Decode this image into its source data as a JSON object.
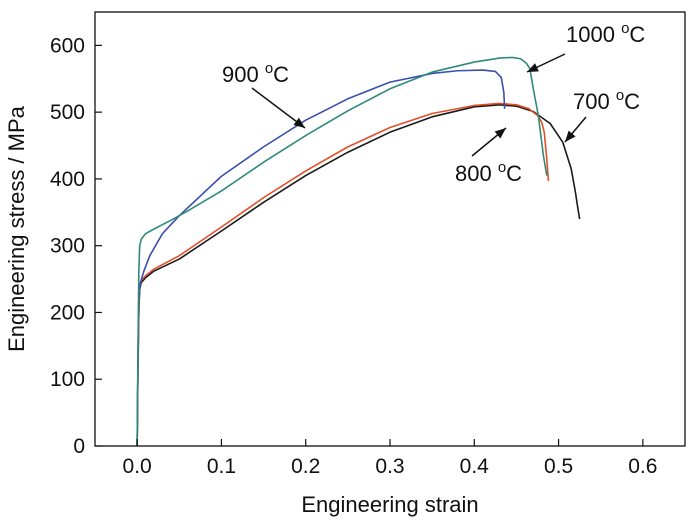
{
  "chart_data": {
    "type": "line",
    "title": "",
    "xlabel": "Engineering strain",
    "ylabel": "Engineering stress / MPa",
    "xlim": [
      -0.05,
      0.65
    ],
    "ylim": [
      0,
      650
    ],
    "xticks": [
      0.0,
      0.1,
      0.2,
      0.3,
      0.4,
      0.5,
      0.6
    ],
    "xtick_labels": [
      "0.0",
      "0.1",
      "0.2",
      "0.3",
      "0.4",
      "0.5",
      "0.6"
    ],
    "yticks": [
      0,
      100,
      200,
      300,
      400,
      500,
      600
    ],
    "ytick_labels": [
      "0",
      "100",
      "200",
      "300",
      "400",
      "500",
      "600"
    ],
    "grid": false,
    "legend": "none",
    "series": [
      {
        "color": "#1a1a1a",
        "x": [
          0.0,
          0.001,
          0.002,
          0.003,
          0.005,
          0.01,
          0.02,
          0.05,
          0.1,
          0.15,
          0.2,
          0.25,
          0.3,
          0.35,
          0.4,
          0.43,
          0.45,
          0.47,
          0.49,
          0.505,
          0.515,
          0.52,
          0.523,
          0.525
        ],
        "y": [
          0,
          120,
          200,
          235,
          245,
          252,
          262,
          280,
          322,
          365,
          405,
          440,
          470,
          493,
          508,
          511,
          509,
          501,
          483,
          455,
          415,
          380,
          355,
          340
        ]
      },
      {
        "color": "#e2502a",
        "x": [
          0.0,
          0.001,
          0.002,
          0.003,
          0.005,
          0.01,
          0.02,
          0.05,
          0.1,
          0.15,
          0.2,
          0.25,
          0.3,
          0.35,
          0.4,
          0.43,
          0.45,
          0.465,
          0.475,
          0.48,
          0.483,
          0.486,
          0.488
        ],
        "y": [
          0,
          120,
          200,
          238,
          248,
          255,
          265,
          285,
          328,
          372,
          412,
          448,
          477,
          498,
          510,
          513,
          511,
          505,
          495,
          485,
          470,
          430,
          397
        ]
      },
      {
        "color": "#3a4fb0",
        "x": [
          0.0,
          0.001,
          0.002,
          0.004,
          0.008,
          0.015,
          0.03,
          0.05,
          0.1,
          0.15,
          0.2,
          0.25,
          0.3,
          0.35,
          0.38,
          0.41,
          0.425,
          0.432,
          0.435,
          0.436
        ],
        "y": [
          0,
          130,
          220,
          245,
          262,
          285,
          318,
          345,
          404,
          448,
          488,
          520,
          545,
          558,
          562,
          563,
          561,
          552,
          530,
          505
        ]
      },
      {
        "color": "#2e8b7a",
        "x": [
          0.0,
          0.001,
          0.002,
          0.003,
          0.005,
          0.01,
          0.02,
          0.04,
          0.06,
          0.1,
          0.15,
          0.2,
          0.25,
          0.3,
          0.35,
          0.4,
          0.43,
          0.445,
          0.455,
          0.462,
          0.466,
          0.468,
          0.47,
          0.473,
          0.476,
          0.478,
          0.48,
          0.482,
          0.484,
          0.486
        ],
        "y": [
          0,
          150,
          260,
          300,
          310,
          318,
          325,
          338,
          352,
          382,
          425,
          465,
          502,
          535,
          560,
          575,
          581,
          582,
          580,
          573,
          565,
          550,
          535,
          515,
          495,
          475,
          455,
          435,
          420,
          405
        ]
      }
    ],
    "annotations": [
      {
        "label_prefix": "900 ",
        "label_super": "o",
        "label_suffix": "C"
      },
      {
        "label_prefix": "1000 ",
        "label_super": "o",
        "label_suffix": "C"
      },
      {
        "label_prefix": "700 ",
        "label_super": "o",
        "label_suffix": "C"
      },
      {
        "label_prefix": "800 ",
        "label_super": "o",
        "label_suffix": "C"
      }
    ]
  }
}
